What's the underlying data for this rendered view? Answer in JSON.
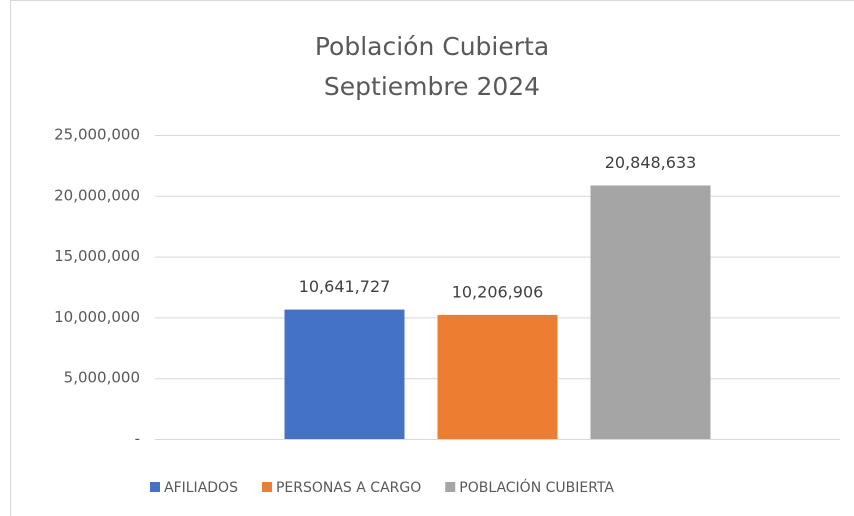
{
  "chart_data": {
    "type": "bar",
    "title": "Población Cubierta",
    "subtitle": "Septiembre 2024",
    "categories": [
      null
    ],
    "series": [
      {
        "name": "AFILIADOS",
        "color": "#4472c4",
        "values": [
          10641727
        ],
        "value_labels": [
          "10,641,727"
        ]
      },
      {
        "name": "PERSONAS A CARGO",
        "color": "#ed7d31",
        "values": [
          10206906
        ],
        "value_labels": [
          "10,206,906"
        ]
      },
      {
        "name": "POBLACIÓN CUBIERTA",
        "color": "#a5a5a5",
        "values": [
          20848633
        ],
        "value_labels": [
          "20,848,633"
        ]
      }
    ],
    "ylim": [
      0,
      25000000
    ],
    "yticks": [
      {
        "value": 0,
        "label": "-"
      },
      {
        "value": 5000000,
        "label": "5,000,000"
      },
      {
        "value": 10000000,
        "label": "10,000,000"
      },
      {
        "value": 15000000,
        "label": "15,000,000"
      },
      {
        "value": 20000000,
        "label": "20,000,000"
      },
      {
        "value": 25000000,
        "label": "25,000,000"
      }
    ],
    "grid": true,
    "legend": "bottom"
  }
}
